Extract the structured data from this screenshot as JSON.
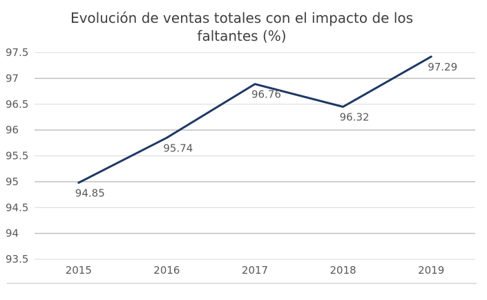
{
  "chart_data": {
    "type": "line",
    "title_lines": [
      "Evolución de ventas totales con el impacto de los",
      "faltantes (%)"
    ],
    "title": "Evolución de ventas totales con el impacto de los faltantes (%)",
    "categories": [
      "2015",
      "2016",
      "2017",
      "2018",
      "2019"
    ],
    "series": [
      {
        "name": "Ventas totales",
        "values": [
          94.85,
          95.74,
          96.76,
          96.32,
          97.29
        ],
        "labels": [
          "94.85",
          "95.74",
          "96.76",
          "96.32",
          "97.29"
        ],
        "color": "#1f3864"
      }
    ],
    "actual_points": [
      94.98,
      95.85,
      96.89,
      96.45,
      97.42
    ],
    "ylim": [
      93.5,
      97.5
    ],
    "yticks": [
      "93.5",
      "94",
      "94.5",
      "95",
      "95.5",
      "96",
      "96.5",
      "97",
      "97.5"
    ],
    "xlabel": "",
    "ylabel": "",
    "grid": true,
    "legend": "none"
  }
}
